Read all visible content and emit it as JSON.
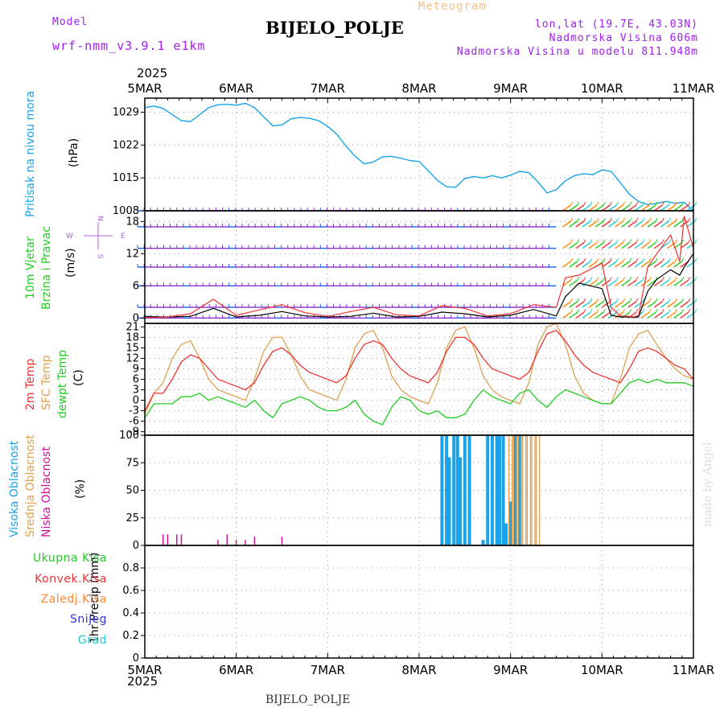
{
  "header": {
    "model_label": "Model",
    "model_name": "wrf-nmm_v3.9.1 e1km",
    "product": "Meteogram",
    "station": "BIJELO_POLJE",
    "lonlat": "lon,lat (19.7E, 43.03N)",
    "elevation": "Nadmorska Visina 606m",
    "model_elevation": "Nadmorska Visina u modelu 811.948m",
    "year_top": "2025",
    "year_bottom": "2025",
    "footer_station": "BIJELO_POLJE",
    "credit": "made by Angel"
  },
  "colors": {
    "pressure": "#1aa3e8",
    "temp2m": "#ee3333",
    "sfc_temp": "#e0a050",
    "dewpoint": "#22cc22",
    "cloud_high": "#1aa3e8",
    "cloud_mid": "#e0a050",
    "cloud_low": "#cc1199",
    "wind_profile": "#8833cc",
    "wind_speed": "#000000",
    "wind_gust": "#ee3333"
  },
  "axis_labels": {
    "pressure": [
      "Pritisak na nivou mora",
      "(hPa)"
    ],
    "wind": [
      "10m Vjetar",
      "Brzina i Pravac",
      "(m/s)"
    ],
    "wind_compass": {
      "n": "N",
      "s": "S",
      "w": "W",
      "e": "E"
    },
    "temp": [
      "2m Temp",
      "SFC Temp",
      "dewpt Temp",
      "(C)"
    ],
    "cloud": [
      "Visoka Oblacnost",
      "Srednja Oblacnost",
      "Niska Oblacnost",
      "(%)"
    ],
    "precip_axis": "1hr Precip (mm)",
    "precip_legend": [
      "Ukupna Kisa",
      "Konvek.Kisa",
      "Zaledj.Kisa",
      "Snijeg",
      "Grad"
    ]
  },
  "precip_legend_colors": [
    "#22cc22",
    "#ee3333",
    "#ff8833",
    "#3333dd",
    "#22cccc"
  ],
  "chart_data": [
    {
      "type": "line",
      "id": "pressure",
      "x": [
        0,
        0.1,
        0.2,
        0.3,
        0.4,
        0.5,
        0.6,
        0.7,
        0.8,
        0.9,
        1.0,
        1.1,
        1.2,
        1.3,
        1.4,
        1.5,
        1.6,
        1.7,
        1.8,
        1.9,
        2.0,
        2.1,
        2.2,
        2.3,
        2.4,
        2.5,
        2.6,
        2.7,
        2.8,
        2.9,
        3.0,
        3.1,
        3.2,
        3.3,
        3.4,
        3.5,
        3.6,
        3.7,
        3.8,
        3.9,
        4.0,
        4.1,
        4.2,
        4.3,
        4.4,
        4.5,
        4.6,
        4.7,
        4.8,
        4.9,
        5.0,
        5.1,
        5.2,
        5.3,
        5.4,
        5.5,
        5.6,
        5.7,
        5.8,
        5.9,
        6.0
      ],
      "values": [
        1030.0,
        1030.3,
        1029.8,
        1028.5,
        1027.2,
        1027.0,
        1028.5,
        1030.0,
        1030.6,
        1030.7,
        1030.5,
        1030.9,
        1030.0,
        1028.0,
        1026.1,
        1026.3,
        1027.6,
        1027.9,
        1027.7,
        1027.2,
        1026.0,
        1024.3,
        1021.8,
        1019.6,
        1018.0,
        1018.4,
        1019.5,
        1019.6,
        1019.2,
        1018.7,
        1018.5,
        1016.5,
        1014.5,
        1013.1,
        1013.0,
        1014.9,
        1015.3,
        1015.0,
        1015.5,
        1015.0,
        1015.6,
        1016.4,
        1016.1,
        1014.1,
        1011.8,
        1012.5,
        1014.4,
        1015.5,
        1015.9,
        1015.7,
        1016.7,
        1016.4,
        1014.0,
        1011.5,
        1010.0,
        1009.3,
        1009.6,
        1010.0,
        1009.6,
        1009.8,
        1008.0
      ],
      "x_ticks": [
        "5MAR",
        "6MAR",
        "7MAR",
        "8MAR",
        "9MAR",
        "10MAR",
        "11MAR"
      ],
      "ylim": [
        1008,
        1032
      ],
      "y_ticks": [
        1008,
        1015,
        1022,
        1029
      ],
      "grid": true
    },
    {
      "type": "line",
      "id": "wind",
      "x": [
        0,
        0.25,
        0.5,
        0.75,
        1.0,
        1.25,
        1.5,
        1.75,
        2.0,
        2.25,
        2.5,
        2.75,
        3.0,
        3.25,
        3.5,
        3.75,
        4.0,
        4.25,
        4.5,
        4.6,
        4.75,
        5.0,
        5.1,
        5.2,
        5.3,
        5.35,
        5.4,
        5.5,
        5.6,
        5.75,
        5.85,
        5.9,
        6.0
      ],
      "series": [
        {
          "values": [
            0.3,
            0.2,
            0.3,
            1.8,
            0.2,
            0.5,
            1.2,
            0.4,
            0.2,
            0.3,
            0.9,
            0.2,
            0.3,
            1.1,
            0.8,
            0.2,
            0.5,
            1.6,
            0.4,
            4.0,
            6.5,
            5.5,
            0.5,
            0.2,
            0.2,
            0.1,
            0.2,
            5.0,
            7.2,
            9.0,
            8.0,
            9.5,
            12.0
          ]
        },
        {
          "values": [
            0.1,
            0.2,
            0.8,
            3.5,
            0.5,
            1.5,
            2.5,
            1.0,
            0.3,
            1.2,
            2.0,
            0.6,
            0.4,
            2.3,
            1.8,
            0.4,
            0.8,
            2.5,
            2.0,
            7.5,
            8.0,
            10.2,
            2.0,
            0.4,
            0.3,
            0.2,
            0.5,
            9.5,
            12.0,
            15.5,
            10.5,
            19.0,
            13.0
          ]
        }
      ],
      "barb_levels": [
        0,
        2,
        6,
        9.5,
        13,
        17,
        20
      ],
      "ylim": [
        -1,
        20
      ],
      "y_ticks": [
        0,
        6,
        12,
        18
      ],
      "grid": true
    },
    {
      "type": "line",
      "id": "temperature",
      "x": [
        0,
        0.1,
        0.2,
        0.3,
        0.4,
        0.5,
        0.6,
        0.7,
        0.8,
        0.9,
        1.0,
        1.1,
        1.2,
        1.3,
        1.4,
        1.5,
        1.6,
        1.7,
        1.8,
        1.9,
        2.0,
        2.1,
        2.2,
        2.3,
        2.4,
        2.5,
        2.6,
        2.7,
        2.8,
        2.9,
        3.0,
        3.1,
        3.2,
        3.3,
        3.4,
        3.5,
        3.6,
        3.7,
        3.8,
        3.9,
        4.0,
        4.1,
        4.2,
        4.3,
        4.4,
        4.5,
        4.6,
        4.7,
        4.8,
        4.9,
        5.0,
        5.1,
        5.2,
        5.3,
        5.4,
        5.5,
        5.6,
        5.7,
        5.8,
        5.9,
        6.0
      ],
      "series": [
        {
          "values": [
            -3,
            2,
            2,
            6,
            11,
            13,
            12,
            9,
            6,
            5,
            4,
            3,
            5,
            10,
            14,
            15,
            13,
            10,
            8,
            7,
            6,
            5,
            7,
            12,
            16,
            17,
            16,
            12,
            9,
            7,
            6,
            5,
            8,
            14,
            18,
            18,
            16,
            12,
            9,
            8,
            7,
            6,
            8,
            14,
            19,
            20,
            17,
            13,
            10,
            8,
            7,
            6,
            5,
            9,
            14,
            15,
            14,
            12,
            10,
            9,
            6
          ]
        },
        {
          "values": [
            -4,
            2,
            5,
            12,
            16,
            17,
            12,
            6,
            3,
            2,
            1,
            0,
            6,
            14,
            18,
            18,
            13,
            7,
            3,
            2,
            1,
            0,
            6,
            15,
            19,
            20,
            15,
            7,
            3,
            1,
            0,
            -1,
            5,
            15,
            20,
            21,
            15,
            7,
            3,
            1,
            0,
            -1,
            5,
            16,
            21,
            22,
            16,
            7,
            2,
            0,
            -1,
            -1,
            6,
            15,
            19,
            20,
            16,
            12,
            9,
            7,
            6
          ]
        },
        {
          "values": [
            -5,
            -1,
            -1,
            -1,
            1,
            1,
            2,
            0,
            1,
            0,
            -1,
            -2,
            0,
            -3,
            -5,
            -1,
            0,
            1,
            0,
            -2,
            -3,
            -3,
            -2,
            0,
            -4,
            -6,
            -7,
            -2,
            1,
            0,
            -3,
            -4,
            -3,
            -5,
            -5,
            -4,
            0,
            3,
            1,
            0,
            -1,
            2,
            3,
            0,
            -2,
            1,
            3,
            2,
            1,
            0,
            -1,
            -1,
            2,
            5,
            6,
            5,
            6,
            5,
            5,
            5,
            4
          ]
        }
      ],
      "ylim": [
        -10,
        22
      ],
      "y_ticks": [
        -9,
        -6,
        -3,
        0,
        3,
        6,
        9,
        12,
        15,
        18,
        21
      ],
      "grid": true
    },
    {
      "type": "bar",
      "id": "cloud_cover",
      "series": [
        {
          "points": [
            [
              3.25,
              100
            ],
            [
              3.3,
              100
            ],
            [
              3.33,
              80
            ],
            [
              3.38,
              100
            ],
            [
              3.42,
              100
            ],
            [
              3.45,
              80
            ],
            [
              3.5,
              100
            ],
            [
              3.55,
              100
            ],
            [
              3.7,
              5
            ],
            [
              3.75,
              100
            ],
            [
              3.8,
              100
            ],
            [
              3.85,
              100
            ],
            [
              3.88,
              100
            ],
            [
              3.92,
              100
            ],
            [
              3.95,
              20
            ],
            [
              4.0,
              40
            ],
            [
              4.05,
              100
            ],
            [
              4.1,
              100
            ]
          ]
        },
        {
          "points": [
            [
              4.0,
              100
            ],
            [
              4.05,
              100
            ],
            [
              4.1,
              100
            ],
            [
              4.15,
              100
            ],
            [
              4.2,
              100
            ],
            [
              4.25,
              100
            ],
            [
              4.3,
              100
            ]
          ]
        },
        {
          "points": [
            [
              0.2,
              10
            ],
            [
              0.25,
              10
            ],
            [
              0.35,
              10
            ],
            [
              0.4,
              10
            ],
            [
              0.8,
              5
            ],
            [
              0.9,
              10
            ],
            [
              1.0,
              5
            ],
            [
              1.1,
              5
            ],
            [
              1.2,
              8
            ],
            [
              1.5,
              8
            ]
          ]
        }
      ],
      "ylim": [
        0,
        100
      ],
      "y_ticks": [
        0,
        25,
        50,
        75,
        100
      ],
      "grid": true
    },
    {
      "type": "bar",
      "id": "precipitation",
      "series": [],
      "ylim": [
        0,
        1.0
      ],
      "y_ticks": [
        0,
        0.2,
        0.4,
        0.6,
        0.8
      ],
      "x_ticks": [
        "5MAR",
        "6MAR",
        "7MAR",
        "8MAR",
        "9MAR",
        "10MAR",
        "11MAR"
      ],
      "grid": true
    }
  ]
}
